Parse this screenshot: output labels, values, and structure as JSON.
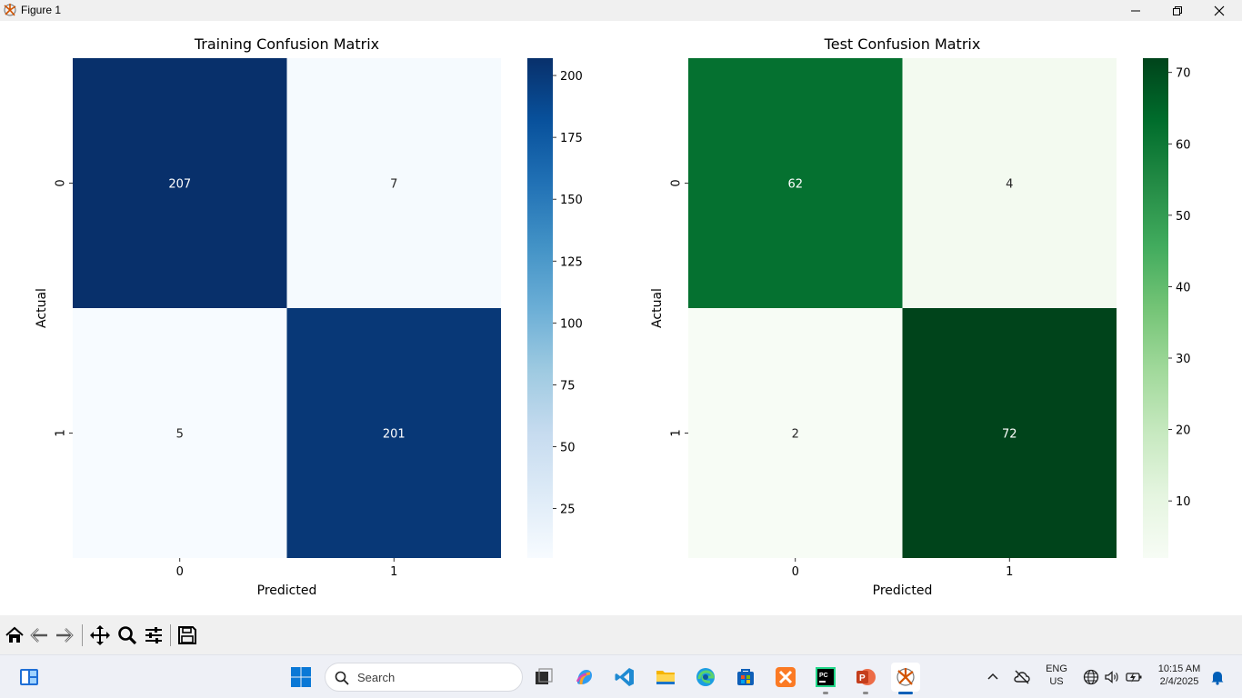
{
  "window": {
    "title": "Figure 1"
  },
  "chart_data": [
    {
      "type": "heatmap",
      "title": "Training Confusion Matrix",
      "xlabel": "Predicted",
      "ylabel": "Actual",
      "x_ticks": [
        "0",
        "1"
      ],
      "y_ticks": [
        "0",
        "1"
      ],
      "matrix": [
        [
          207,
          7
        ],
        [
          5,
          201
        ]
      ],
      "colormap": "Blues",
      "color_low": "#f7fbff",
      "color_high": "#08306b",
      "colorbar_range": [
        5,
        207
      ],
      "colorbar_ticks": [
        "25",
        "50",
        "75",
        "100",
        "125",
        "150",
        "175",
        "200"
      ]
    },
    {
      "type": "heatmap",
      "title": "Test Confusion Matrix",
      "xlabel": "Predicted",
      "ylabel": "Actual",
      "x_ticks": [
        "0",
        "1"
      ],
      "y_ticks": [
        "0",
        "1"
      ],
      "matrix": [
        [
          62,
          4
        ],
        [
          2,
          72
        ]
      ],
      "colormap": "Greens",
      "color_low": "#f7fcf5",
      "color_high": "#00441b",
      "colorbar_range": [
        2,
        72
      ],
      "colorbar_ticks": [
        "10",
        "20",
        "30",
        "40",
        "50",
        "60",
        "70"
      ]
    }
  ],
  "toolbar": {
    "buttons": [
      "home-icon",
      "back-icon",
      "forward-icon",
      "pan-icon",
      "zoom-icon",
      "configure-subplots-icon",
      "save-icon"
    ]
  },
  "taskbar": {
    "search_placeholder": "Search",
    "language": "ENG",
    "region": "US",
    "time": "10:15 AM",
    "date": "2/4/2025"
  }
}
